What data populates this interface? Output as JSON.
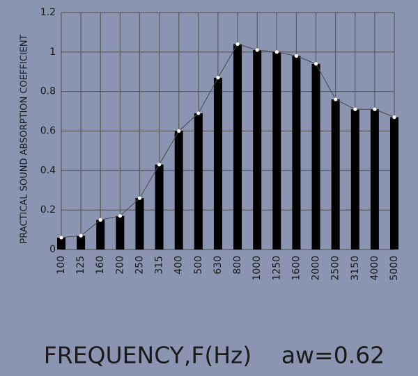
{
  "chart_data": {
    "type": "bar",
    "ylabel": "PRACTICAL SOUND ABSORPTION COEFFICIENT",
    "xlabel": "FREQUENCY,F(Hz)",
    "annotation": "aw=0.62",
    "categories": [
      "100",
      "125",
      "160",
      "200",
      "250",
      "315",
      "400",
      "500",
      "630",
      "800",
      "1000",
      "1250",
      "1600",
      "2000",
      "2500",
      "3150",
      "4000",
      "5000"
    ],
    "values": [
      0.06,
      0.07,
      0.15,
      0.17,
      0.26,
      0.43,
      0.6,
      0.69,
      0.87,
      1.04,
      1.01,
      1.0,
      0.98,
      0.94,
      0.76,
      0.71,
      0.71,
      0.67
    ],
    "color": "#000000",
    "line_color": "#4a4a4a",
    "marker_color": "#ffffff",
    "ylim": [
      0,
      1.2
    ],
    "yticks": [
      0,
      0.2,
      0.4,
      0.6,
      0.8,
      1,
      1.2
    ],
    "grid": true
  }
}
